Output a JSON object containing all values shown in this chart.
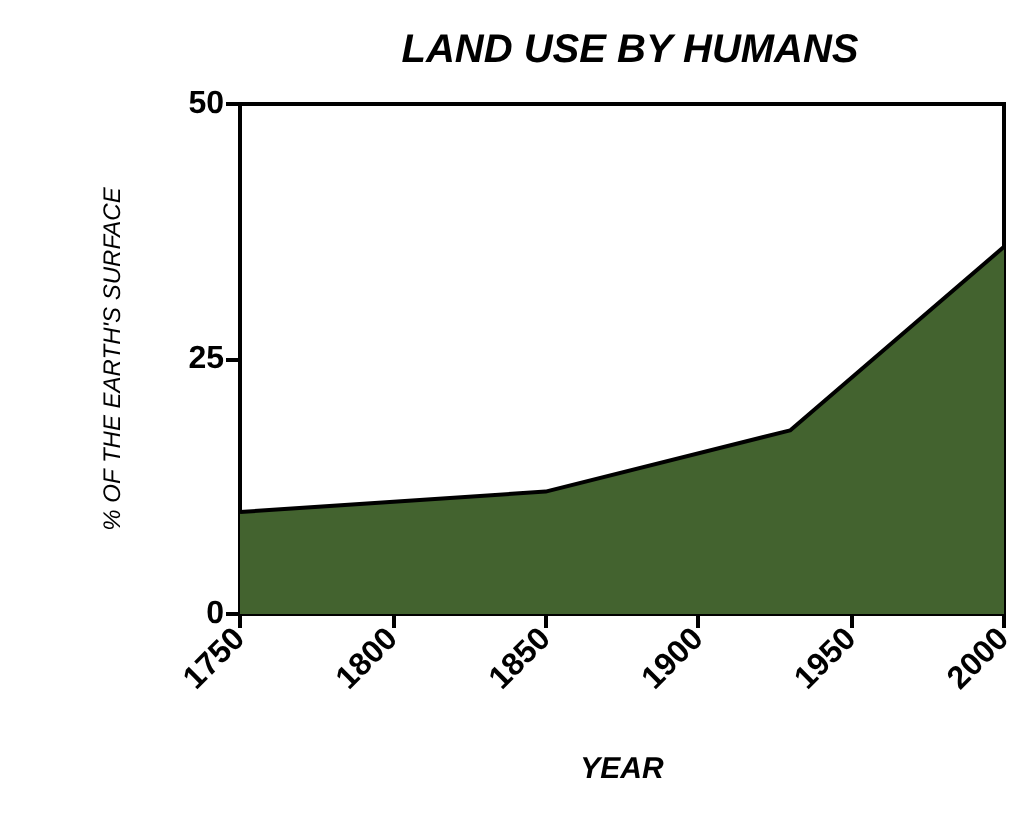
{
  "chart_data": {
    "type": "area",
    "title": "LAND USE BY HUMANS",
    "xlabel": "YEAR",
    "ylabel": "% OF THE EARTH'S SURFACE",
    "x": [
      1750,
      1850,
      1930,
      2000
    ],
    "series": [
      {
        "color": "#43632f",
        "values": [
          10,
          12,
          18,
          36
        ]
      }
    ],
    "xlim": [
      1750,
      2000
    ],
    "xticks": [
      1750,
      1800,
      1850,
      1900,
      1950,
      2000
    ],
    "ylim": [
      0,
      50
    ],
    "yticks": [
      0,
      25,
      50
    ]
  }
}
